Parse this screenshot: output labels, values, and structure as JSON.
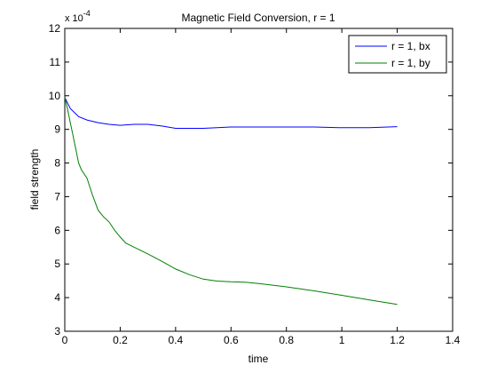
{
  "chart_data": {
    "type": "line",
    "title": "Magnetic Field Conversion, r = 1",
    "xlabel": "time",
    "ylabel": "field strength",
    "y_multiplier_base": "x 10",
    "y_multiplier_exp": "-4",
    "xlim": [
      0,
      1.4
    ],
    "ylim": [
      3,
      12
    ],
    "xticks": [
      "0",
      "0.2",
      "0.4",
      "0.6",
      "0.8",
      "1",
      "1.2",
      "1.4"
    ],
    "yticks": [
      "3",
      "4",
      "5",
      "6",
      "7",
      "8",
      "9",
      "10",
      "11",
      "12"
    ],
    "legend_position": "top-right",
    "grid": false,
    "series": [
      {
        "name": "r = 1, bx",
        "color": "#0000ff",
        "x": [
          0,
          0.02,
          0.05,
          0.08,
          0.12,
          0.16,
          0.2,
          0.25,
          0.3,
          0.35,
          0.4,
          0.5,
          0.6,
          0.7,
          0.8,
          0.9,
          1.0,
          1.1,
          1.2
        ],
        "y": [
          9.95,
          9.62,
          9.38,
          9.28,
          9.2,
          9.15,
          9.12,
          9.15,
          9.15,
          9.1,
          9.03,
          9.03,
          9.07,
          9.07,
          9.07,
          9.07,
          9.05,
          9.05,
          9.08
        ]
      },
      {
        "name": "r = 1, by",
        "color": "#008000",
        "x": [
          0,
          0.01,
          0.02,
          0.03,
          0.04,
          0.05,
          0.06,
          0.08,
          0.1,
          0.12,
          0.14,
          0.16,
          0.18,
          0.2,
          0.22,
          0.25,
          0.3,
          0.35,
          0.4,
          0.45,
          0.5,
          0.55,
          0.6,
          0.65,
          0.7,
          0.8,
          0.9,
          1.0,
          1.1,
          1.2
        ],
        "y": [
          9.95,
          9.6,
          9.2,
          8.8,
          8.4,
          8.0,
          7.8,
          7.55,
          7.05,
          6.6,
          6.4,
          6.25,
          6.0,
          5.8,
          5.62,
          5.5,
          5.3,
          5.08,
          4.85,
          4.68,
          4.55,
          4.49,
          4.47,
          4.46,
          4.42,
          4.32,
          4.2,
          4.07,
          3.93,
          3.8
        ]
      }
    ]
  }
}
